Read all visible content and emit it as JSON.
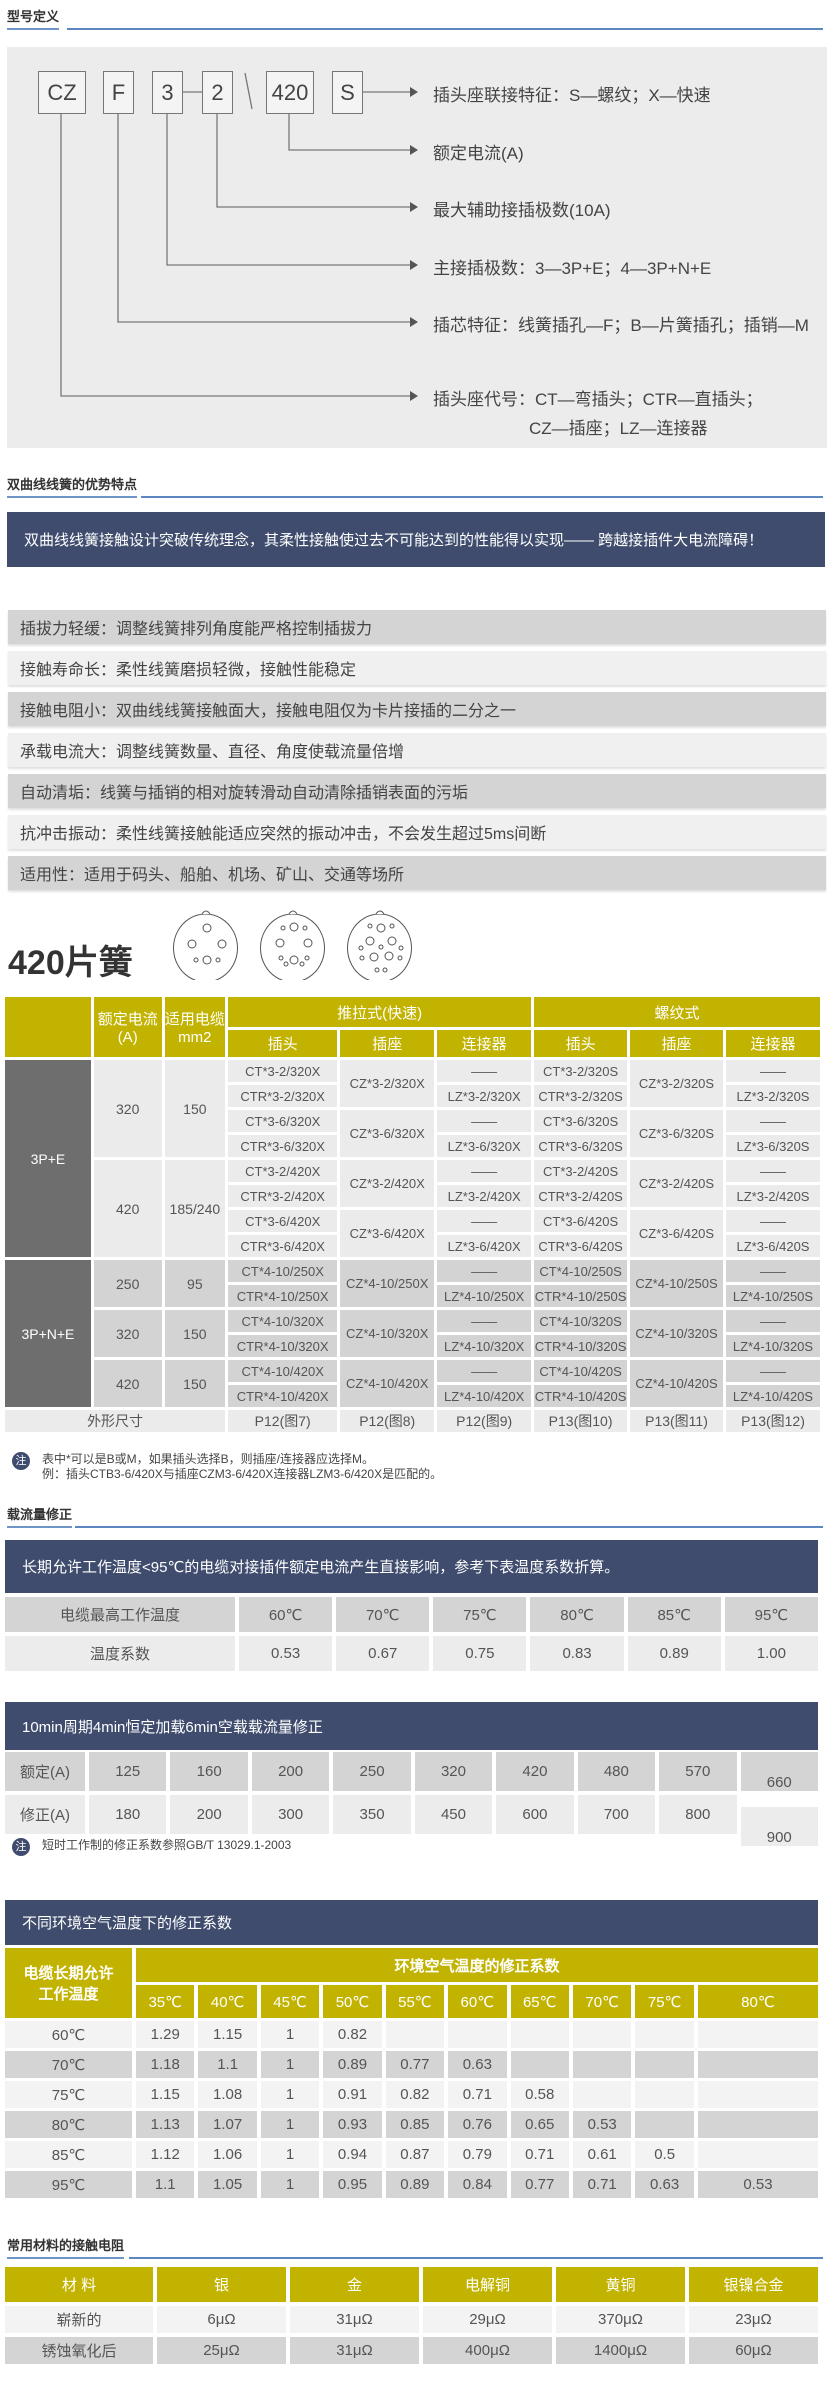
{
  "sections": {
    "model_definition": "型号定义",
    "advantages": "双曲线线簧的优势特点",
    "current_correction": "载流量修正",
    "contact_resistance": "常用材料的接触电阻"
  },
  "diagram": {
    "codes": [
      "CZ",
      "F",
      "3",
      "2",
      "420",
      "S"
    ],
    "labels": [
      "插头座联接特征：S—螺纹；X—快速",
      "额定电流(A)",
      "最大辅助接插极数(10A)",
      "主接插极数：3—3P+E；4—3P+N+E",
      "插芯特征：线簧插孔—F；B—片簧插孔；插销—M",
      "插头座代号：CT—弯插头；CTR—直插头；"
    ],
    "label_continuation": "CZ—插座；LZ—连接器"
  },
  "advantages": {
    "banner": "双曲线线簧接触设计突破传统理念，其柔性接触使过去不可能达到的性能得以实现—— 跨越接插件大电流障碍！",
    "items": [
      "插拔力轻缓：调整线簧排列角度能严格控制插拔力",
      "接触寿命长：柔性线簧磨损轻微，接触性能稳定",
      "接触电阻小：双曲线线簧接触面大，接触电阻仅为卡片接插的二分之一",
      "承载电流大：调整线簧数量、直径、角度使载流量倍增",
      "自动清垢：线簧与插销的相对旋转滑动自动清除插销表面的污垢",
      "抗冲击振动：柔性线簧接触能适应突然的振动冲击，不会发生超过5ms间断",
      "适用性：适用于码头、船舶、机场、矿山、交通等场所"
    ]
  },
  "product_title": "420片簧",
  "spec_table": {
    "headers": {
      "rated_current": [
        "额定电流",
        "(A)"
      ],
      "cable": [
        "适用电缆",
        "mm2"
      ],
      "push_pull": "推拉式(快速)",
      "screw": "螺纹式",
      "sub": [
        "插头",
        "插座",
        "连接器",
        "插头",
        "插座",
        "连接器"
      ]
    },
    "groups": [
      {
        "label": "3P+E",
        "shade": "light",
        "ratings": [
          {
            "current": "320",
            "cable": "150",
            "sets": [
              {
                "plug": [
                  "CT*3-2/320X",
                  "CTR*3-2/320X"
                ],
                "socket": "CZ*3-2/320X",
                "connector": [
                  "——",
                  "LZ*3-2/320X"
                ],
                "s_plug": [
                  "CT*3-2/320S",
                  "CTR*3-2/320S"
                ],
                "s_socket": "CZ*3-2/320S",
                "s_connector": [
                  "——",
                  "LZ*3-2/320S"
                ]
              },
              {
                "plug": [
                  "CT*3-6/320X",
                  "CTR*3-6/320X"
                ],
                "socket": "CZ*3-6/320X",
                "connector": [
                  "——",
                  "LZ*3-6/320X"
                ],
                "s_plug": [
                  "CT*3-6/320S",
                  "CTR*3-6/320S"
                ],
                "s_socket": "CZ*3-6/320S",
                "s_connector": [
                  "——",
                  "LZ*3-6/320S"
                ]
              }
            ]
          },
          {
            "current": "420",
            "cable": "185/240",
            "sets": [
              {
                "plug": [
                  "CT*3-2/420X",
                  "CTR*3-2/420X"
                ],
                "socket": "CZ*3-2/420X",
                "connector": [
                  "——",
                  "LZ*3-2/420X"
                ],
                "s_plug": [
                  "CT*3-2/420S",
                  "CTR*3-2/420S"
                ],
                "s_socket": "CZ*3-2/420S",
                "s_connector": [
                  "——",
                  "LZ*3-2/420S"
                ]
              },
              {
                "plug": [
                  "CT*3-6/420X",
                  "CTR*3-6/420X"
                ],
                "socket": "CZ*3-6/420X",
                "connector": [
                  "——",
                  "LZ*3-6/420X"
                ],
                "s_plug": [
                  "CT*3-6/420S",
                  "CTR*3-6/420S"
                ],
                "s_socket": "CZ*3-6/420S",
                "s_connector": [
                  "——",
                  "LZ*3-6/420S"
                ]
              }
            ]
          }
        ]
      },
      {
        "label": "3P+N+E",
        "shade": "dark",
        "ratings": [
          {
            "current": "250",
            "cable": "95",
            "sets": [
              {
                "plug": [
                  "CT*4-10/250X",
                  "CTR*4-10/250X"
                ],
                "socket": "CZ*4-10/250X",
                "connector": [
                  "——",
                  "LZ*4-10/250X"
                ],
                "s_plug": [
                  "CT*4-10/250S",
                  "CTR*4-10/250S"
                ],
                "s_socket": "CZ*4-10/250S",
                "s_connector": [
                  "——",
                  "LZ*4-10/250S"
                ]
              }
            ]
          },
          {
            "current": "320",
            "cable": "150",
            "sets": [
              {
                "plug": [
                  "CT*4-10/320X",
                  "CTR*4-10/320X"
                ],
                "socket": "CZ*4-10/320X",
                "connector": [
                  "——",
                  "LZ*4-10/320X"
                ],
                "s_plug": [
                  "CT*4-10/320S",
                  "CTR*4-10/320S"
                ],
                "s_socket": "CZ*4-10/320S",
                "s_connector": [
                  "——",
                  "LZ*4-10/320S"
                ]
              }
            ]
          },
          {
            "current": "420",
            "cable": "150",
            "sets": [
              {
                "plug": [
                  "CT*4-10/420X",
                  "CTR*4-10/420X"
                ],
                "socket": "CZ*4-10/420X",
                "connector": [
                  "——",
                  "LZ*4-10/420X"
                ],
                "s_plug": [
                  "CT*4-10/420S",
                  "CTR*4-10/420S"
                ],
                "s_socket": "CZ*4-10/420S",
                "s_connector": [
                  "——",
                  "LZ*4-10/420S"
                ]
              }
            ]
          }
        ]
      }
    ],
    "footer": {
      "label": "外形尺寸",
      "refs": [
        "P12(图7)",
        "P12(图8)",
        "P12(图9)",
        "P13(图10)",
        "P13(图11)",
        "P13(图12)"
      ]
    }
  },
  "spec_note": {
    "icon": "注",
    "lines": [
      "表中*可以是B或M，如果插头选择B，则插座/连接器应选择M。",
      "例：插头CTB3-6/420X与插座CZM3-6/420X连接器LZM3-6/420X是匹配的。"
    ]
  },
  "temp_coef": {
    "banner": "长期允许工作温度<95℃的电缆对接插件额定电流产生直接影响，参考下表温度系数折算。",
    "rows": [
      [
        "电缆最高工作温度",
        "60℃",
        "70℃",
        "75℃",
        "80℃",
        "85℃",
        "95℃"
      ],
      [
        "温度系数",
        "0.53",
        "0.67",
        "0.75",
        "0.83",
        "0.89",
        "1.00"
      ]
    ]
  },
  "short_time": {
    "banner": "10min周期4min恒定加载6min空载载流量修正",
    "rows": [
      [
        "额定(A)",
        "125",
        "160",
        "200",
        "250",
        "320",
        "420",
        "480",
        "570",
        "660"
      ],
      [
        "修正(A)",
        "180",
        "200",
        "300",
        "350",
        "450",
        "600",
        "700",
        "800",
        "900"
      ]
    ],
    "note_icon": "注",
    "note": "短时工作制的修正系数参照GB/T 13029.1-2003"
  },
  "ambient": {
    "banner": "不同环境空气温度下的修正系数",
    "row_header": [
      "电缆长期允许",
      "工作温度"
    ],
    "group_header": "环境空气温度的修正系数",
    "temps": [
      "35℃",
      "40℃",
      "45℃",
      "50℃",
      "55℃",
      "60℃",
      "65℃",
      "70℃",
      "75℃",
      "80℃"
    ],
    "rows": [
      [
        "60℃",
        "1.29",
        "1.15",
        "1",
        "0.82",
        "",
        "",
        "",
        "",
        "",
        ""
      ],
      [
        "70℃",
        "1.18",
        "1.1",
        "1",
        "0.89",
        "0.77",
        "0.63",
        "",
        "",
        "",
        ""
      ],
      [
        "75℃",
        "1.15",
        "1.08",
        "1",
        "0.91",
        "0.82",
        "0.71",
        "0.58",
        "",
        "",
        ""
      ],
      [
        "80℃",
        "1.13",
        "1.07",
        "1",
        "0.93",
        "0.85",
        "0.76",
        "0.65",
        "0.53",
        "",
        ""
      ],
      [
        "85℃",
        "1.12",
        "1.06",
        "1",
        "0.94",
        "0.87",
        "0.79",
        "0.71",
        "0.61",
        "0.5",
        ""
      ],
      [
        "95℃",
        "1.1",
        "1.05",
        "1",
        "0.95",
        "0.89",
        "0.84",
        "0.77",
        "0.71",
        "0.63",
        "0.53"
      ]
    ]
  },
  "materials": {
    "header": [
      "材 料",
      "银",
      "金",
      "电解铜",
      "黄铜",
      "银镍合金"
    ],
    "rows": [
      [
        "崭新的",
        "6μΩ",
        "31μΩ",
        "29μΩ",
        "370μΩ",
        "23μΩ"
      ],
      [
        "锈蚀氧化后",
        "25μΩ",
        "31μΩ",
        "400μΩ",
        "1400μΩ",
        "60μΩ"
      ]
    ]
  },
  "colors": {
    "olive": "#c2b300",
    "navy": "#3f4c6e",
    "accent_blue": "#5b86c0",
    "group_gray": "#6e6e6e"
  }
}
